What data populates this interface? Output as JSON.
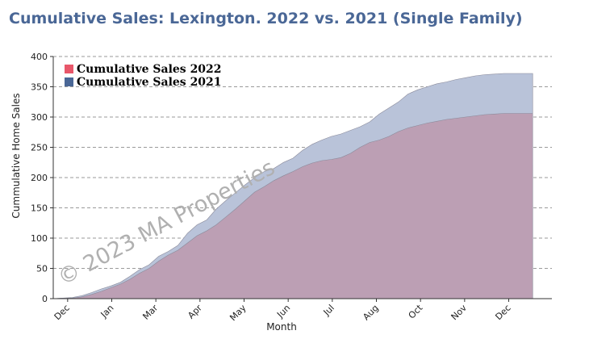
{
  "title": "Cumulative Sales: Lexington. 2022 vs. 2021 (Single Family)",
  "watermark": "© 2023 MA Properties",
  "chart_data": {
    "type": "area",
    "xlabel": "Month",
    "ylabel": "Cummulative Home Sales",
    "ylim": [
      0,
      400
    ],
    "yticks": [
      0,
      50,
      100,
      150,
      200,
      250,
      300,
      350,
      400
    ],
    "xticks": [
      "Dec",
      "Jan",
      "Mar",
      "Apr",
      "May",
      "Jun",
      "Jul",
      "Aug",
      "Oct",
      "Nov",
      "Dec"
    ],
    "grid": "horizontal dashed",
    "legend_position": "top-left",
    "x_index_range": [
      0,
      52
    ],
    "series": [
      {
        "name": "Cumulative Sales 2021",
        "color": "#b9c3d9",
        "legend_color": "#4a6796",
        "x": [
          0,
          1,
          2,
          3,
          4,
          5,
          6,
          7,
          8,
          9,
          10,
          11,
          12,
          13,
          14,
          15,
          16,
          17,
          18,
          19,
          20,
          21,
          22,
          23,
          24,
          25,
          26,
          27,
          28,
          29,
          30,
          31,
          32,
          33,
          34,
          35,
          36,
          37,
          38,
          39,
          40,
          41,
          42,
          43,
          44,
          45,
          46,
          47,
          48,
          49,
          50
        ],
        "values": [
          0,
          1,
          2,
          5,
          10,
          16,
          21,
          27,
          37,
          48,
          56,
          70,
          78,
          88,
          108,
          122,
          130,
          148,
          162,
          175,
          188,
          200,
          210,
          215,
          225,
          232,
          245,
          255,
          262,
          268,
          272,
          278,
          284,
          292,
          305,
          315,
          325,
          338,
          345,
          350,
          355,
          358,
          362,
          365,
          368,
          370,
          371,
          372,
          372,
          372,
          372
        ]
      },
      {
        "name": "Cumulative Sales 2022",
        "color": "#bc9fb4",
        "legend_color": "#e8576a",
        "x": [
          0,
          1,
          2,
          3,
          4,
          5,
          6,
          7,
          8,
          9,
          10,
          11,
          12,
          13,
          14,
          15,
          16,
          17,
          18,
          19,
          20,
          21,
          22,
          23,
          24,
          25,
          26,
          27,
          28,
          29,
          30,
          31,
          32,
          33,
          34,
          35,
          36,
          37,
          38,
          39,
          40,
          41,
          42,
          43,
          44,
          45,
          46,
          47,
          48,
          49,
          50
        ],
        "values": [
          0,
          1,
          1,
          3,
          7,
          12,
          18,
          24,
          32,
          42,
          50,
          62,
          72,
          80,
          92,
          104,
          112,
          122,
          135,
          148,
          162,
          176,
          185,
          195,
          203,
          210,
          218,
          224,
          228,
          230,
          233,
          240,
          250,
          258,
          262,
          268,
          276,
          282,
          286,
          290,
          293,
          296,
          298,
          300,
          302,
          304,
          305,
          306,
          306,
          306,
          306
        ]
      }
    ]
  }
}
